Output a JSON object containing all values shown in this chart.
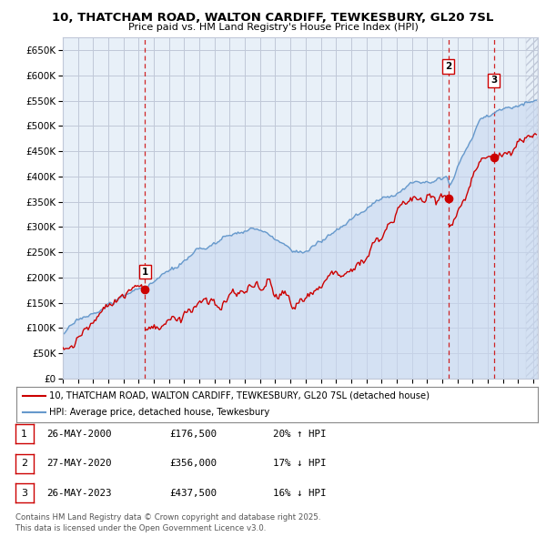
{
  "title": "10, THATCHAM ROAD, WALTON CARDIFF, TEWKESBURY, GL20 7SL",
  "subtitle": "Price paid vs. HM Land Registry's House Price Index (HPI)",
  "ylim": [
    0,
    675000
  ],
  "yticks": [
    0,
    50000,
    100000,
    150000,
    200000,
    250000,
    300000,
    350000,
    400000,
    450000,
    500000,
    550000,
    600000,
    650000
  ],
  "ytick_labels": [
    "£0",
    "£50K",
    "£100K",
    "£150K",
    "£200K",
    "£250K",
    "£300K",
    "£350K",
    "£400K",
    "£450K",
    "£500K",
    "£550K",
    "£600K",
    "£650K"
  ],
  "xlim_start": 1995.2,
  "xlim_end": 2026.3,
  "xtick_years": [
    1995,
    1996,
    1997,
    1998,
    1999,
    2000,
    2001,
    2002,
    2003,
    2004,
    2005,
    2006,
    2007,
    2008,
    2009,
    2010,
    2011,
    2012,
    2013,
    2014,
    2015,
    2016,
    2017,
    2018,
    2019,
    2020,
    2021,
    2022,
    2023,
    2024,
    2025,
    2026
  ],
  "background_color": "#ffffff",
  "plot_bg_color": "#e8f0f8",
  "grid_color": "#c0c8d8",
  "red_line_color": "#cc0000",
  "blue_line_color": "#6699cc",
  "blue_fill_color": "#c8d8f0",
  "dashed_line_color": "#cc0000",
  "sale1_year": 2000.4,
  "sale1_price": 176500,
  "sale2_year": 2020.41,
  "sale2_price": 356000,
  "sale3_year": 2023.4,
  "sale3_price": 437500,
  "legend_line1": "10, THATCHAM ROAD, WALTON CARDIFF, TEWKESBURY, GL20 7SL (detached house)",
  "legend_line2": "HPI: Average price, detached house, Tewkesbury",
  "table_rows": [
    {
      "num": "1",
      "date": "26-MAY-2000",
      "price": "£176,500",
      "change": "20% ↑ HPI"
    },
    {
      "num": "2",
      "date": "27-MAY-2020",
      "price": "£356,000",
      "change": "17% ↓ HPI"
    },
    {
      "num": "3",
      "date": "26-MAY-2023",
      "price": "£437,500",
      "change": "16% ↓ HPI"
    }
  ],
  "footer": "Contains HM Land Registry data © Crown copyright and database right 2025.\nThis data is licensed under the Open Government Licence v3.0."
}
